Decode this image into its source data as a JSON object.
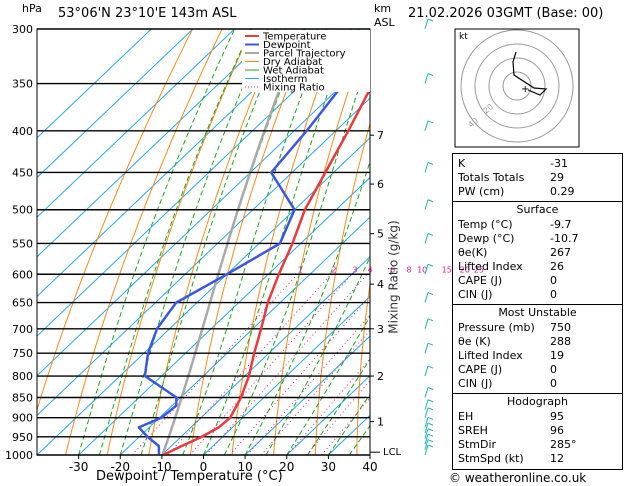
{
  "header": {
    "hpa_label": "hPa",
    "location": "53°06'N  23°10'E  143m  ASL",
    "km_label": "km",
    "asl_label": "ASL",
    "datetime": "21.02.2026  03GMT  (Base: 00)"
  },
  "chart_data": {
    "type": "line",
    "title": "",
    "xlabel": "Dewpoint / Temperature (°C)",
    "y2label": "Mixing Ratio (g/kg)",
    "y_scale": "log-pressure",
    "pressure_ticks": [
      300,
      350,
      400,
      450,
      500,
      550,
      600,
      650,
      700,
      750,
      800,
      850,
      900,
      950,
      1000
    ],
    "temp_ticks": [
      -30,
      -20,
      -10,
      0,
      10,
      20,
      30,
      40
    ],
    "xlim": [
      -40,
      40
    ],
    "ylim": [
      1000,
      300
    ],
    "km_ticks": [
      {
        "km": "1",
        "p": 910
      },
      {
        "km": "2",
        "p": 800
      },
      {
        "km": "3",
        "p": 700
      },
      {
        "km": "4",
        "p": 617
      },
      {
        "km": "5",
        "p": 535
      },
      {
        "km": "6",
        "p": 465
      },
      {
        "km": "7",
        "p": 405
      }
    ],
    "lcl": {
      "label": "LCL",
      "p": 992
    },
    "mixing_ratio_labels": [
      "1",
      "2",
      "3",
      "4",
      "6",
      "8",
      "10",
      "15",
      "20",
      "25"
    ],
    "legend": [
      "Temperature",
      "Dewpoint",
      "Parcel Trajectory",
      "Dry Adiabat",
      "Wet Adiabat",
      "Isotherm",
      "Mixing Ratio"
    ],
    "legend_position": "top-right",
    "colors": {
      "temperature": "#e8393d",
      "dewpoint": "#3b57e0",
      "parcel": "#a9a9a9",
      "dry_adiabat": "#f08c1a",
      "wet_adiabat": "#22a022",
      "isotherm": "#29a6e6",
      "mixing_ratio": "#e2189a"
    },
    "series": [
      {
        "name": "Temperature",
        "points": [
          {
            "p": 1000,
            "t": -9.7
          },
          {
            "p": 975,
            "t": -7.5
          },
          {
            "p": 950,
            "t": -5.0
          },
          {
            "p": 925,
            "t": -3.3
          },
          {
            "p": 900,
            "t": -3.0
          },
          {
            "p": 850,
            "t": -5.5
          },
          {
            "p": 800,
            "t": -9.0
          },
          {
            "p": 750,
            "t": -13.5
          },
          {
            "p": 700,
            "t": -18.0
          },
          {
            "p": 650,
            "t": -23.0
          },
          {
            "p": 600,
            "t": -27.5
          },
          {
            "p": 550,
            "t": -32.0
          },
          {
            "p": 500,
            "t": -37.5
          },
          {
            "p": 450,
            "t": -42.0
          },
          {
            "p": 400,
            "t": -47.0
          },
          {
            "p": 350,
            "t": -53.0
          },
          {
            "p": 300,
            "t": -58.0
          }
        ]
      },
      {
        "name": "Dewpoint",
        "points": [
          {
            "p": 1000,
            "t": -10.7
          },
          {
            "p": 975,
            "t": -13.0
          },
          {
            "p": 950,
            "t": -18.0
          },
          {
            "p": 925,
            "t": -22.5
          },
          {
            "p": 900,
            "t": -19.5
          },
          {
            "p": 870,
            "t": -19.0
          },
          {
            "p": 850,
            "t": -21.0
          },
          {
            "p": 800,
            "t": -34.0
          },
          {
            "p": 750,
            "t": -39.0
          },
          {
            "p": 700,
            "t": -43.0
          },
          {
            "p": 650,
            "t": -45.0
          },
          {
            "p": 600,
            "t": -40.0
          },
          {
            "p": 550,
            "t": -35.0
          },
          {
            "p": 500,
            "t": -40.0
          },
          {
            "p": 450,
            "t": -55.0
          },
          {
            "p": 400,
            "t": -57.0
          },
          {
            "p": 350,
            "t": -60.0
          },
          {
            "p": 300,
            "t": -67.0
          }
        ]
      }
    ]
  },
  "hodograph": {
    "unit_label": "kt",
    "ring_labels": [
      "20",
      "40"
    ]
  },
  "indices": {
    "top": [
      {
        "label": "K",
        "value": "-31"
      },
      {
        "label": "Totals Totals",
        "value": "29"
      },
      {
        "label": "PW (cm)",
        "value": "0.29"
      }
    ],
    "surface": {
      "title": "Surface",
      "rows": [
        {
          "label": "Temp (°C)",
          "value": "-9.7"
        },
        {
          "label": "Dewp (°C)",
          "value": "-10.7"
        },
        {
          "label": "θe(K)",
          "value": "267"
        },
        {
          "label": "Lifted Index",
          "value": "26"
        },
        {
          "label": "CAPE (J)",
          "value": "0"
        },
        {
          "label": "CIN (J)",
          "value": "0"
        }
      ]
    },
    "most_unstable": {
      "title": "Most Unstable",
      "rows": [
        {
          "label": "Pressure (mb)",
          "value": "750"
        },
        {
          "label": "θe (K)",
          "value": "288"
        },
        {
          "label": "Lifted Index",
          "value": "19"
        },
        {
          "label": "CAPE (J)",
          "value": "0"
        },
        {
          "label": "CIN (J)",
          "value": "0"
        }
      ]
    },
    "hodograph": {
      "title": "Hodograph",
      "rows": [
        {
          "label": "EH",
          "value": "95"
        },
        {
          "label": "SREH",
          "value": "96"
        },
        {
          "label": "StmDir",
          "value": "285°"
        },
        {
          "label": "StmSpd (kt)",
          "value": "12"
        }
      ]
    }
  },
  "footer": {
    "credit": "© weatheronline.co.uk"
  }
}
